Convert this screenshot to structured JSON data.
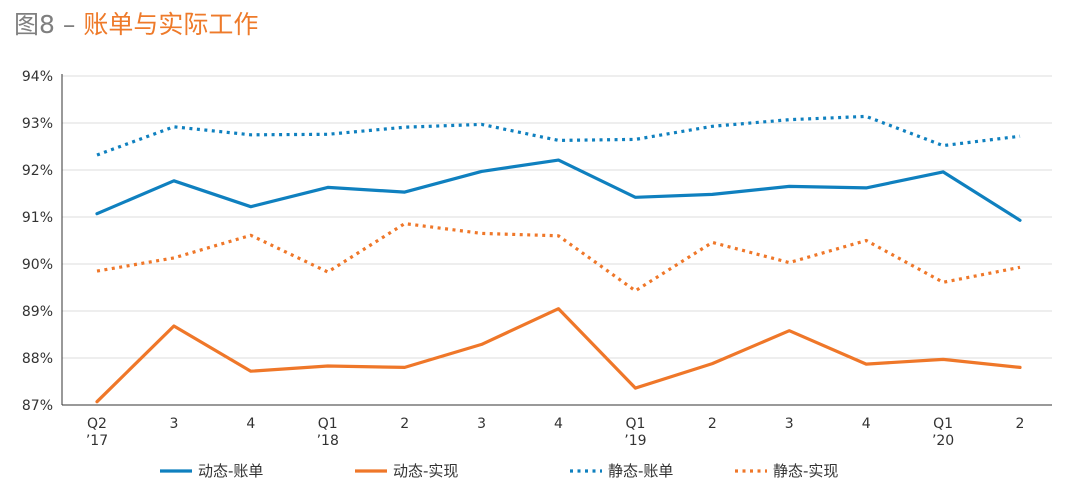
{
  "title": {
    "figure": "图8",
    "separator": " – ",
    "text": "账单与实际工作"
  },
  "colors": {
    "blue": "#0f80bf",
    "orange": "#ef7729",
    "grid": "#dcdcdc",
    "axis": "#333333",
    "text": "#333333"
  },
  "chart_data": {
    "type": "line",
    "title": "图8 – 账单与实际工作",
    "xlabel": "",
    "ylabel": "",
    "ylim": [
      87,
      94
    ],
    "yticks": [
      "87%",
      "88%",
      "89%",
      "90%",
      "91%",
      "92%",
      "93%",
      "94%"
    ],
    "categories": [
      [
        "Q2",
        "’17"
      ],
      [
        "3"
      ],
      [
        "4"
      ],
      [
        "Q1",
        "’18"
      ],
      [
        "2"
      ],
      [
        "3"
      ],
      [
        "4"
      ],
      [
        "Q1",
        "’19"
      ],
      [
        "2"
      ],
      [
        "3"
      ],
      [
        "4"
      ],
      [
        "Q1",
        "’20"
      ],
      [
        "2"
      ]
    ],
    "series": [
      {
        "name": "动态-账单",
        "color": "#0f80bf",
        "dash": "solid",
        "values": [
          91.07,
          91.77,
          91.22,
          91.63,
          91.53,
          91.97,
          92.21,
          91.42,
          91.48,
          91.65,
          91.62,
          91.96,
          90.93
        ]
      },
      {
        "name": "动态-实现",
        "color": "#ef7729",
        "dash": "solid",
        "values": [
          87.07,
          88.68,
          87.72,
          87.83,
          87.8,
          88.29,
          89.05,
          87.36,
          87.88,
          88.58,
          87.87,
          87.97,
          87.8
        ]
      },
      {
        "name": "静态-账单",
        "color": "#0f80bf",
        "dash": "dotted",
        "values": [
          92.32,
          92.92,
          92.75,
          92.76,
          92.91,
          92.97,
          92.63,
          92.65,
          92.93,
          93.07,
          93.14,
          92.52,
          92.72
        ]
      },
      {
        "name": "静态-实现",
        "color": "#ef7729",
        "dash": "dotted",
        "values": [
          89.85,
          90.13,
          90.61,
          89.83,
          90.86,
          90.65,
          90.6,
          89.43,
          90.46,
          90.03,
          90.5,
          89.61,
          89.93
        ]
      }
    ],
    "legend": "bottom"
  }
}
